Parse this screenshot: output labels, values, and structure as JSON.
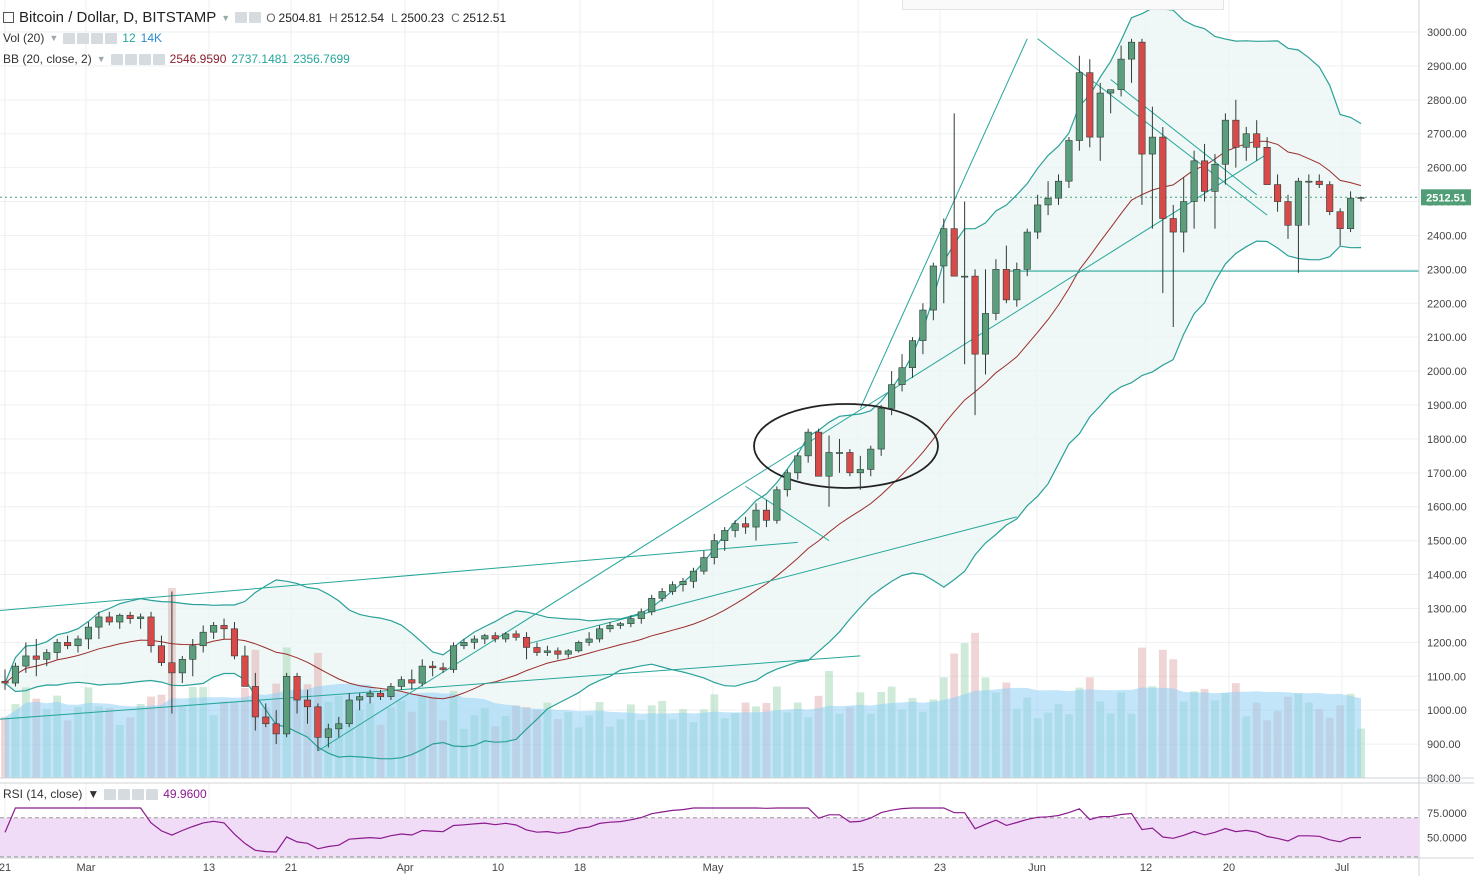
{
  "header": {
    "symbol_title": "Bitcoin / Dollar, D, BITSTAMP",
    "ohlc": [
      {
        "k": "O",
        "v": "2504.81"
      },
      {
        "k": "H",
        "v": "2512.54"
      },
      {
        "k": "L",
        "v": "2500.23"
      },
      {
        "k": "C",
        "v": "2512.51"
      }
    ]
  },
  "indicators": {
    "vol": {
      "label": "Vol (20)",
      "value1": "12",
      "value2": "14K"
    },
    "bb": {
      "label": "BB (20, close, 2)",
      "basis": "2546.9590",
      "upper": "2737.1481",
      "lower": "2356.7699"
    },
    "rsi": {
      "label": "RSI (14, close)",
      "value": "49.9600"
    }
  },
  "current_price_label": "2512.51",
  "colors": {
    "up": "#5a9e7d",
    "down": "#d84a4a",
    "bb_band": "#2aa198",
    "bb_basis": "#9b2d2d",
    "trendline": "#26a69a",
    "rsi_line": "#8b1a8e",
    "rsi_fill": "#f0dcf6",
    "vol_ma": "#8fd0f5",
    "price_tag": "#4f9e76"
  },
  "chart_data": {
    "type": "candlestick",
    "title": "Bitcoin / Dollar, D, BITSTAMP",
    "ylim": [
      780,
      3070
    ],
    "y_ticks": [
      800,
      900,
      1000,
      1100,
      1200,
      1300,
      1400,
      1500,
      1600,
      1700,
      1800,
      1900,
      2000,
      2100,
      2200,
      2300,
      2400,
      2500,
      2600,
      2700,
      2800,
      2900,
      3000
    ],
    "x_ticks": [
      "21",
      "Mar",
      "13",
      "21",
      "Apr",
      "10",
      "18",
      "May",
      "15",
      "23",
      "Jun",
      "12",
      "20",
      "Jul"
    ],
    "rsi_ticks": [
      "75.0000",
      "50.0000"
    ],
    "hline": 2295,
    "candles": [
      [
        1085,
        1120,
        1060,
        1080
      ],
      [
        1080,
        1140,
        1070,
        1130
      ],
      [
        1130,
        1200,
        1110,
        1160
      ],
      [
        1160,
        1210,
        1100,
        1150
      ],
      [
        1150,
        1180,
        1130,
        1170
      ],
      [
        1170,
        1210,
        1150,
        1200
      ],
      [
        1200,
        1220,
        1180,
        1190
      ],
      [
        1190,
        1220,
        1170,
        1210
      ],
      [
        1210,
        1260,
        1180,
        1245
      ],
      [
        1245,
        1290,
        1210,
        1275
      ],
      [
        1275,
        1290,
        1250,
        1260
      ],
      [
        1260,
        1285,
        1240,
        1280
      ],
      [
        1280,
        1290,
        1255,
        1270
      ],
      [
        1270,
        1285,
        1240,
        1275
      ],
      [
        1275,
        1290,
        1170,
        1190
      ],
      [
        1190,
        1220,
        1130,
        1140
      ],
      [
        1140,
        1350,
        990,
        1110
      ],
      [
        1110,
        1160,
        1080,
        1150
      ],
      [
        1150,
        1210,
        1100,
        1190
      ],
      [
        1190,
        1250,
        1170,
        1230
      ],
      [
        1230,
        1260,
        1210,
        1250
      ],
      [
        1250,
        1270,
        1210,
        1240
      ],
      [
        1240,
        1260,
        1150,
        1160
      ],
      [
        1160,
        1190,
        1080,
        1070
      ],
      [
        1070,
        1110,
        940,
        980
      ],
      [
        980,
        1020,
        950,
        960
      ],
      [
        960,
        1000,
        900,
        930
      ],
      [
        930,
        1110,
        920,
        1100
      ],
      [
        1100,
        1110,
        990,
        1030
      ],
      [
        1030,
        1060,
        960,
        1010
      ],
      [
        1010,
        1020,
        880,
        920
      ],
      [
        920,
        960,
        890,
        945
      ],
      [
        945,
        980,
        920,
        960
      ],
      [
        960,
        1050,
        950,
        1030
      ],
      [
        1030,
        1050,
        1000,
        1040
      ],
      [
        1040,
        1060,
        1020,
        1050
      ],
      [
        1050,
        1060,
        1030,
        1040
      ],
      [
        1040,
        1080,
        1030,
        1070
      ],
      [
        1070,
        1100,
        1060,
        1090
      ],
      [
        1090,
        1120,
        1060,
        1080
      ],
      [
        1080,
        1150,
        1070,
        1130
      ],
      [
        1130,
        1145,
        1100,
        1125
      ],
      [
        1125,
        1140,
        1110,
        1120
      ],
      [
        1120,
        1200,
        1110,
        1190
      ],
      [
        1190,
        1210,
        1180,
        1200
      ],
      [
        1200,
        1220,
        1180,
        1210
      ],
      [
        1210,
        1225,
        1195,
        1220
      ],
      [
        1220,
        1230,
        1200,
        1210
      ],
      [
        1210,
        1230,
        1200,
        1225
      ],
      [
        1225,
        1235,
        1205,
        1215
      ],
      [
        1215,
        1230,
        1150,
        1185
      ],
      [
        1185,
        1200,
        1160,
        1170
      ],
      [
        1170,
        1190,
        1160,
        1175
      ],
      [
        1175,
        1185,
        1150,
        1165
      ],
      [
        1165,
        1180,
        1155,
        1175
      ],
      [
        1175,
        1205,
        1170,
        1200
      ],
      [
        1200,
        1230,
        1190,
        1210
      ],
      [
        1210,
        1250,
        1200,
        1240
      ],
      [
        1240,
        1260,
        1230,
        1250
      ],
      [
        1250,
        1260,
        1240,
        1255
      ],
      [
        1255,
        1280,
        1245,
        1270
      ],
      [
        1270,
        1300,
        1255,
        1290
      ],
      [
        1290,
        1340,
        1280,
        1330
      ],
      [
        1330,
        1360,
        1320,
        1350
      ],
      [
        1350,
        1380,
        1340,
        1370
      ],
      [
        1370,
        1390,
        1350,
        1380
      ],
      [
        1380,
        1420,
        1360,
        1410
      ],
      [
        1410,
        1470,
        1400,
        1450
      ],
      [
        1450,
        1520,
        1430,
        1500
      ],
      [
        1500,
        1540,
        1470,
        1530
      ],
      [
        1530,
        1560,
        1510,
        1550
      ],
      [
        1550,
        1570,
        1520,
        1540
      ],
      [
        1540,
        1610,
        1500,
        1590
      ],
      [
        1590,
        1620,
        1540,
        1560
      ],
      [
        1560,
        1660,
        1550,
        1650
      ],
      [
        1650,
        1710,
        1630,
        1700
      ],
      [
        1700,
        1760,
        1680,
        1750
      ],
      [
        1750,
        1830,
        1730,
        1820
      ],
      [
        1820,
        1830,
        1690,
        1690
      ],
      [
        1690,
        1810,
        1600,
        1760
      ],
      [
        1760,
        1800,
        1700,
        1760
      ],
      [
        1760,
        1770,
        1690,
        1700
      ],
      [
        1700,
        1750,
        1650,
        1710
      ],
      [
        1710,
        1780,
        1690,
        1770
      ],
      [
        1770,
        1900,
        1750,
        1890
      ],
      [
        1890,
        2000,
        1870,
        1960
      ],
      [
        1960,
        2050,
        1940,
        2010
      ],
      [
        2010,
        2100,
        1980,
        2090
      ],
      [
        2090,
        2200,
        2050,
        2180
      ],
      [
        2180,
        2320,
        2150,
        2310
      ],
      [
        2310,
        2450,
        2200,
        2420
      ],
      [
        2420,
        2760,
        2280,
        2280
      ],
      [
        2280,
        2500,
        2020,
        2280
      ],
      [
        2280,
        2300,
        1870,
        2050
      ],
      [
        2050,
        2300,
        1990,
        2170
      ],
      [
        2170,
        2330,
        2150,
        2300
      ],
      [
        2300,
        2370,
        2200,
        2210
      ],
      [
        2210,
        2320,
        2190,
        2300
      ],
      [
        2300,
        2420,
        2280,
        2410
      ],
      [
        2410,
        2520,
        2390,
        2490
      ],
      [
        2490,
        2560,
        2460,
        2510
      ],
      [
        2510,
        2580,
        2490,
        2560
      ],
      [
        2560,
        2690,
        2540,
        2680
      ],
      [
        2680,
        2930,
        2650,
        2880
      ],
      [
        2880,
        2920,
        2660,
        2690
      ],
      [
        2690,
        2850,
        2620,
        2820
      ],
      [
        2820,
        2830,
        2760,
        2830
      ],
      [
        2830,
        2960,
        2810,
        2920
      ],
      [
        2920,
        2980,
        2850,
        2970
      ],
      [
        2970,
        2980,
        2490,
        2640
      ],
      [
        2640,
        2780,
        2420,
        2690
      ],
      [
        2690,
        2720,
        2230,
        2450
      ],
      [
        2450,
        2490,
        2130,
        2410
      ],
      [
        2410,
        2570,
        2350,
        2500
      ],
      [
        2500,
        2650,
        2420,
        2620
      ],
      [
        2620,
        2670,
        2500,
        2530
      ],
      [
        2530,
        2640,
        2420,
        2610
      ],
      [
        2610,
        2760,
        2550,
        2740
      ],
      [
        2740,
        2800,
        2600,
        2660
      ],
      [
        2660,
        2720,
        2620,
        2700
      ],
      [
        2700,
        2740,
        2620,
        2660
      ],
      [
        2660,
        2690,
        2570,
        2550
      ],
      [
        2550,
        2580,
        2470,
        2500
      ],
      [
        2500,
        2520,
        2390,
        2430
      ],
      [
        2430,
        2570,
        2290,
        2560
      ],
      [
        2560,
        2580,
        2430,
        2560
      ],
      [
        2560,
        2580,
        2540,
        2550
      ],
      [
        2550,
        2560,
        2460,
        2470
      ],
      [
        2470,
        2480,
        2370,
        2420
      ],
      [
        2420,
        2530,
        2410,
        2510
      ],
      [
        2510,
        2515,
        2500,
        2512
      ]
    ]
  }
}
